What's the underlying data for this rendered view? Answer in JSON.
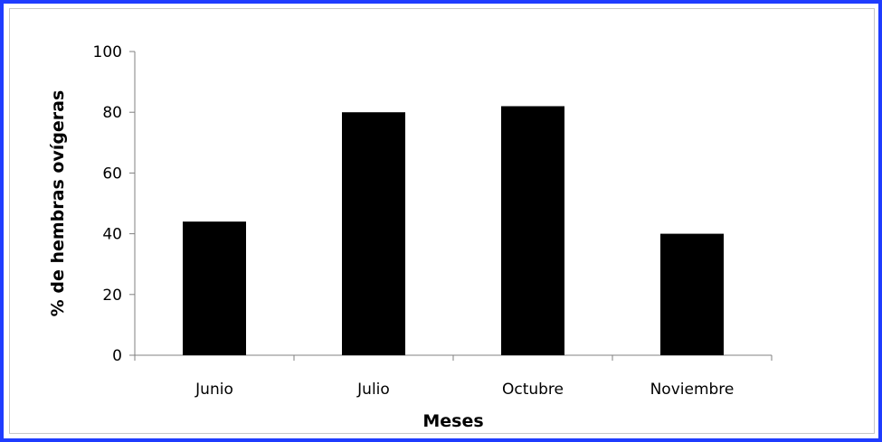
{
  "chart_data": {
    "type": "bar",
    "title": "",
    "categories": [
      "Junio",
      "Julio",
      "Octubre",
      "Noviembre"
    ],
    "series": [
      {
        "values": [
          44,
          80,
          82,
          40
        ]
      }
    ],
    "xlabel": "Meses",
    "ylabel": "% de hembras ovígeras",
    "ylim": [
      0,
      100
    ],
    "yticks": [
      0,
      20,
      40,
      60,
      80,
      100
    ],
    "grid": false,
    "legend": "none"
  },
  "colors": {
    "bar": "#000000",
    "axis": "#808080",
    "outer_border": "#1f3cff",
    "inner_border": "#c8c8c8"
  }
}
